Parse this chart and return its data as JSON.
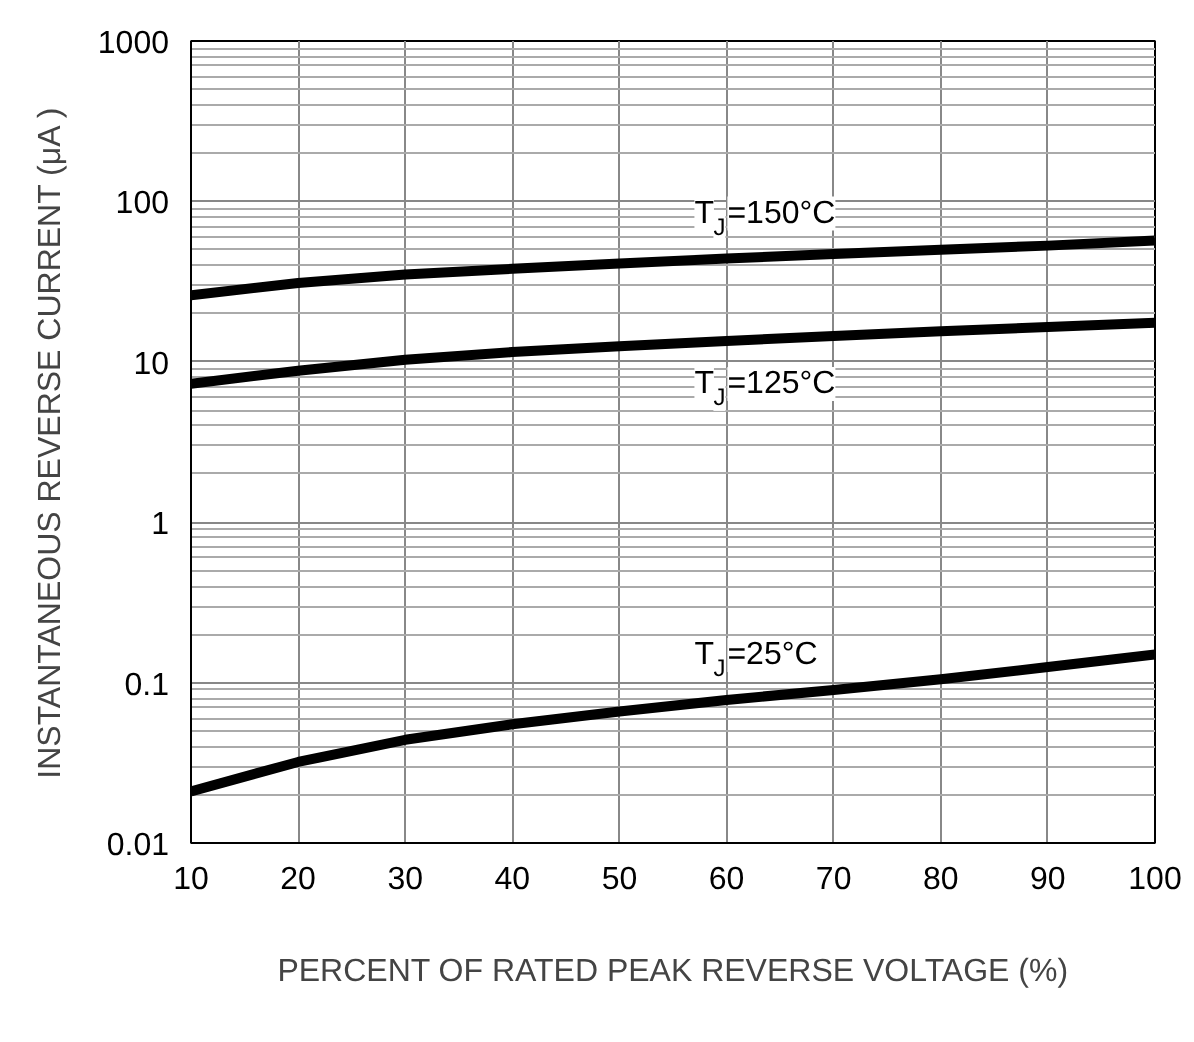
{
  "chart_data": {
    "type": "line",
    "xlabel": "PERCENT OF RATED PEAK REVERSE VOLTAGE (%)",
    "ylabel": "INSTANTANEOUS REVERSE CURRENT (μA )",
    "log": "y",
    "grid": true,
    "marker": "none",
    "line_style": "solid",
    "x": [
      10,
      20,
      30,
      40,
      50,
      60,
      70,
      80,
      90,
      100
    ],
    "xlim": [
      10,
      100
    ],
    "xticks": [
      10,
      20,
      30,
      40,
      50,
      60,
      70,
      80,
      90,
      100
    ],
    "ylim": [
      0.01,
      1000
    ],
    "yticks": [
      0.01,
      0.1,
      1,
      10,
      100,
      1000
    ],
    "series": [
      {
        "name": "T$_{J}$=150°C",
        "color": "#000000",
        "values": [
          26,
          31,
          35,
          38,
          41,
          44,
          47,
          50,
          53,
          57
        ]
      },
      {
        "name": "T$_{J}$=125°C",
        "color": "#000000",
        "values": [
          7.3,
          8.8,
          10.3,
          11.5,
          12.5,
          13.5,
          14.5,
          15.5,
          16.5,
          17.5
        ]
      },
      {
        "name": "T$_{J}$=25°C",
        "color": "#000000",
        "values": [
          0.021,
          0.032,
          0.044,
          0.055,
          0.066,
          0.078,
          0.09,
          0.105,
          0.125,
          0.15
        ]
      }
    ]
  }
}
